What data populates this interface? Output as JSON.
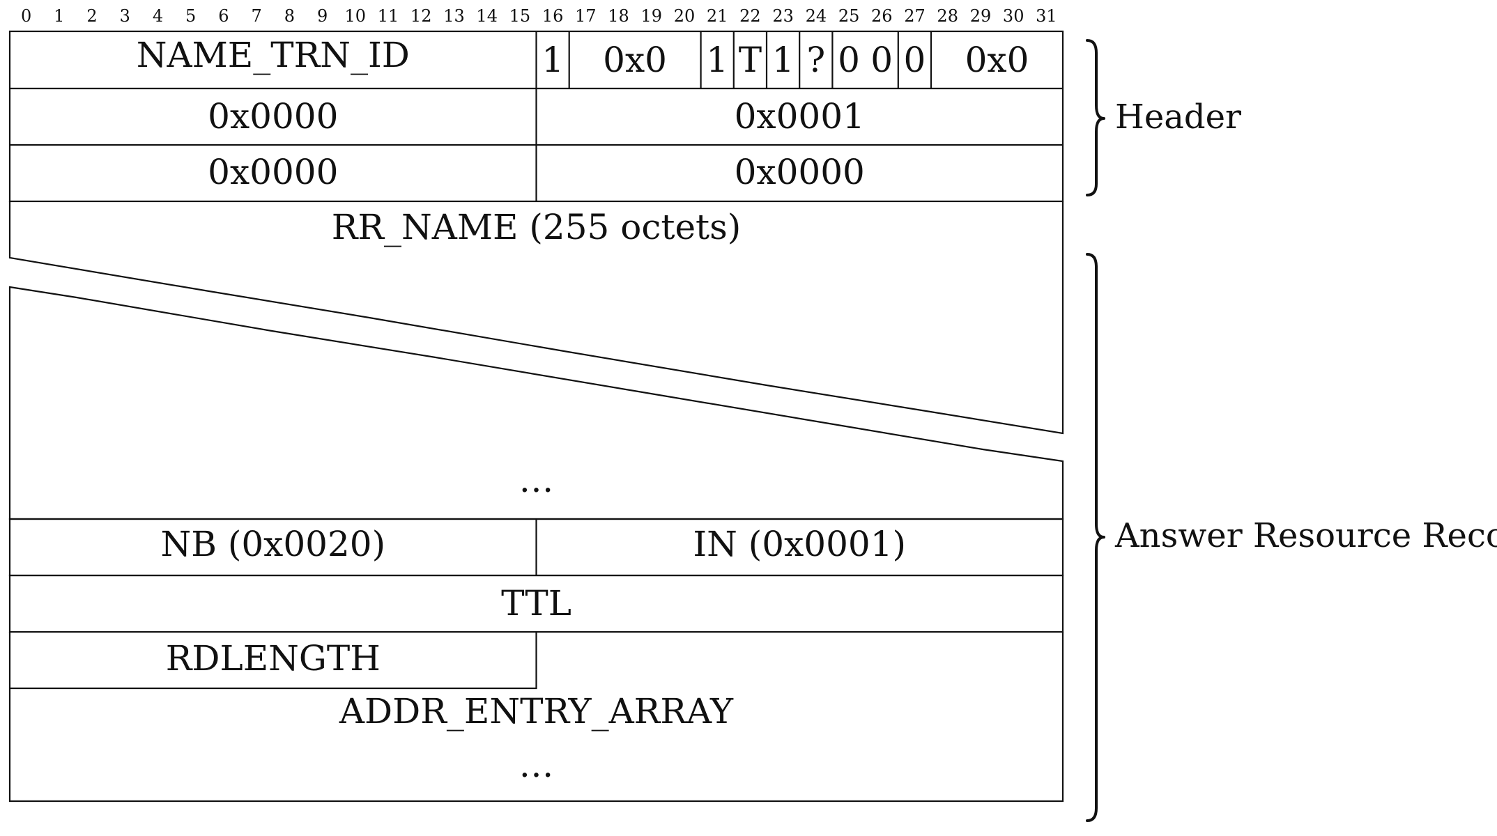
{
  "bit_numbers": [
    "0",
    "1",
    "2",
    "3",
    "4",
    "5",
    "6",
    "7",
    "8",
    "9",
    "10",
    "11",
    "12",
    "13",
    "14",
    "15",
    "16",
    "17",
    "18",
    "19",
    "20",
    "21",
    "22",
    "23",
    "24",
    "25",
    "26",
    "27",
    "28",
    "29",
    "30",
    "31"
  ],
  "header": {
    "name_trn_id": "NAME_TRN_ID",
    "flags": {
      "response": "1",
      "opcode": "0x0",
      "aa": "1",
      "tc": "T",
      "rd": "1",
      "ra": "?",
      "zero_a": "0",
      "zero_b": "0",
      "b": "0",
      "rcode": "0x0"
    },
    "qdcount": "0x0000",
    "ancount": "0x0001",
    "nscount": "0x0000",
    "arcount": "0x0000"
  },
  "answer": {
    "rr_name": "RR_NAME (255 octets)",
    "ellipsis_top": "…",
    "rr_type": "NB (0x0020)",
    "rr_class": "IN (0x0001)",
    "ttl": "TTL",
    "rdlength": "RDLENGTH",
    "addr_entry_array": "ADDR_ENTRY_ARRAY",
    "ellipsis_bottom": "…"
  },
  "braces": {
    "header_label": "Header",
    "answer_label": "Answer Resource Records"
  }
}
